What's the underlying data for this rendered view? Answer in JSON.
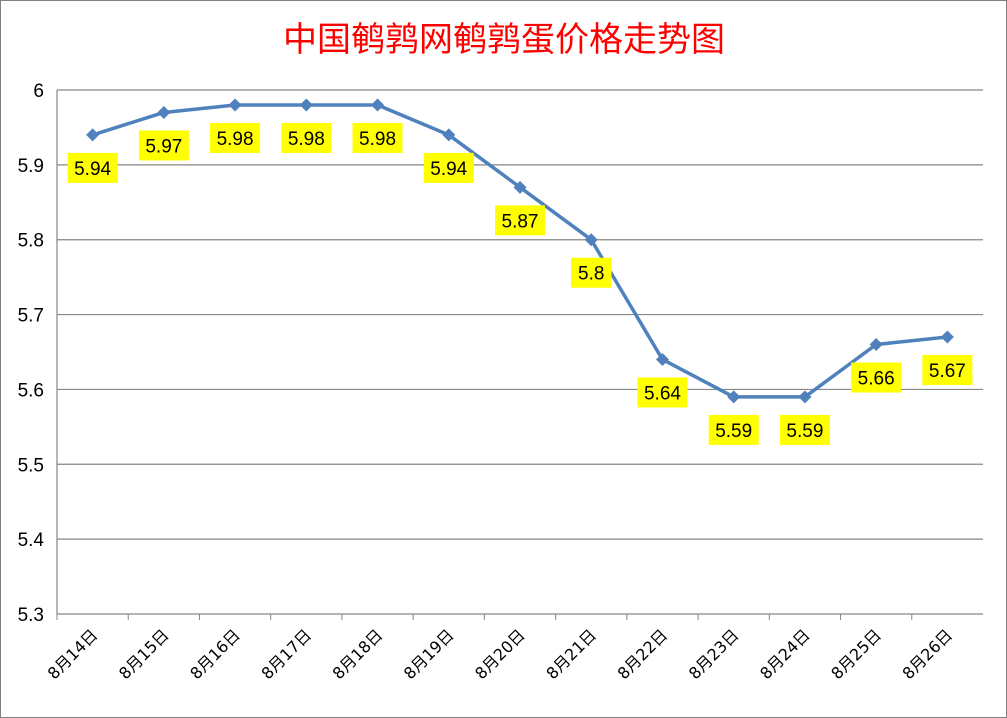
{
  "chart_data": {
    "type": "line",
    "title": "中国鹌鹑网鹌鹑蛋价格走势图",
    "categories": [
      "8月14日",
      "8月15日",
      "8月16日",
      "8月17日",
      "8月18日",
      "8月19日",
      "8月20日",
      "8月21日",
      "8月22日",
      "8月23日",
      "8月24日",
      "8月25日",
      "8月26日"
    ],
    "values": [
      5.94,
      5.97,
      5.98,
      5.98,
      5.98,
      5.94,
      5.87,
      5.8,
      5.64,
      5.59,
      5.59,
      5.66,
      5.67
    ],
    "data_labels": [
      "5.94",
      "5.97",
      "5.98",
      "5.98",
      "5.98",
      "5.94",
      "5.87",
      "5.8",
      "5.64",
      "5.59",
      "5.59",
      "5.66",
      "5.67"
    ],
    "yticks": [
      "5.3",
      "5.4",
      "5.5",
      "5.6",
      "5.7",
      "5.8",
      "5.9",
      "6"
    ],
    "ylim": [
      5.3,
      6.0
    ],
    "grid": true,
    "legend": "none",
    "colors": {
      "line": "#4f81bd",
      "label_bg": "#ffff00",
      "title": "#ff0000",
      "grid": "#868686"
    }
  }
}
